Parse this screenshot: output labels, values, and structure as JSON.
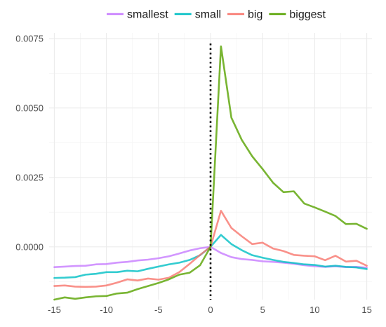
{
  "chart_data": {
    "type": "line",
    "title": "",
    "xlabel": "",
    "ylabel": "",
    "xlim": [
      -15.5,
      15.5
    ],
    "ylim": [
      -0.0019,
      0.0077
    ],
    "x_ticks": [
      -15,
      -10,
      -5,
      0,
      5,
      10,
      15
    ],
    "y_ticks": [
      0.0,
      0.0025,
      0.005,
      0.0075
    ],
    "x_tick_labels": [
      "-15",
      "-10",
      "-5",
      "0",
      "5",
      "10",
      "15"
    ],
    "y_tick_labels": [
      "0.0000",
      "0.0025",
      "0.0050",
      "0.0075"
    ],
    "grid": true,
    "legend_position": "top",
    "reference_line": {
      "x": 0,
      "style": "dotted",
      "color": "#000000"
    },
    "x": [
      -15,
      -14,
      -13,
      -12,
      -11,
      -10,
      -9,
      -8,
      -7,
      -6,
      -5,
      -4,
      -3,
      -2,
      -1,
      0,
      1,
      2,
      3,
      4,
      5,
      6,
      7,
      8,
      9,
      10,
      11,
      12,
      13,
      14,
      15
    ],
    "series": [
      {
        "name": "smallest",
        "color": "#C77CFF",
        "values": [
          -0.00073,
          -0.00071,
          -0.00069,
          -0.00068,
          -0.00063,
          -0.00062,
          -0.00057,
          -0.00054,
          -0.00049,
          -0.00046,
          -0.00041,
          -0.00034,
          -0.00024,
          -0.00013,
          -5e-05,
          0.0,
          -0.00022,
          -0.00037,
          -0.00044,
          -0.00047,
          -0.00052,
          -0.00054,
          -0.00057,
          -0.00061,
          -0.00066,
          -0.0007,
          -0.00072,
          -0.0007,
          -0.00073,
          -0.00072,
          -0.00075
        ]
      },
      {
        "name": "small",
        "color": "#00BFC4",
        "values": [
          -0.00112,
          -0.00111,
          -0.00109,
          -0.001,
          -0.00097,
          -0.00091,
          -0.00091,
          -0.00086,
          -0.00088,
          -0.00079,
          -0.00071,
          -0.00063,
          -0.00057,
          -0.00047,
          -0.0003,
          0.0,
          0.00043,
          0.0001,
          -0.00012,
          -0.0003,
          -0.00039,
          -0.00047,
          -0.00054,
          -0.00058,
          -0.00063,
          -0.00065,
          -0.00071,
          -0.00068,
          -0.00072,
          -0.00074,
          -0.0008
        ]
      },
      {
        "name": "big",
        "color": "#F8766D",
        "values": [
          -0.00141,
          -0.00139,
          -0.00143,
          -0.00144,
          -0.00143,
          -0.00139,
          -0.00129,
          -0.00117,
          -0.00121,
          -0.00114,
          -0.00118,
          -0.00111,
          -0.00091,
          -0.00061,
          -0.00029,
          0.0,
          0.0013,
          0.00068,
          0.00038,
          0.0001,
          0.00015,
          -6e-05,
          -0.00015,
          -0.00029,
          -0.00032,
          -0.00034,
          -0.00048,
          -0.00032,
          -0.00053,
          -0.0005,
          -0.00068
        ]
      },
      {
        "name": "biggest",
        "color": "#57A300",
        "values": [
          -0.0019,
          -0.00182,
          -0.00187,
          -0.00182,
          -0.00178,
          -0.00177,
          -0.00168,
          -0.00165,
          -0.00152,
          -0.00141,
          -0.0013,
          -0.00117,
          -0.001,
          -0.00093,
          -0.00066,
          0.0,
          0.00722,
          0.00465,
          0.00385,
          0.00326,
          0.0028,
          0.00231,
          0.00197,
          0.002,
          0.00156,
          0.00142,
          0.00127,
          0.00111,
          0.00082,
          0.00083,
          0.00065
        ]
      }
    ]
  }
}
